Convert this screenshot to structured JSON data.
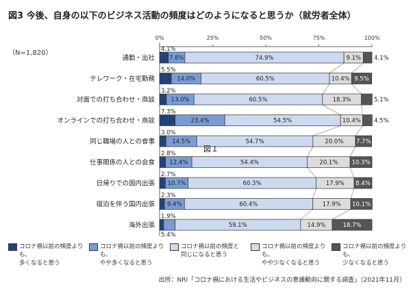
{
  "chart_data": {
    "type": "bar",
    "orientation": "horizontal-stacked-100",
    "title": "図3 今後、自身の以下のビジネス活動の頻度はどのようになると思うか（就労者全体）",
    "note": "（N=1,820）",
    "xticks": [
      "0%",
      "25%",
      "50%",
      "75%",
      "100%"
    ],
    "xlim": [
      0,
      100
    ],
    "categories": [
      "通勤・出社",
      "テレワーク・在宅勤務",
      "対面での打ち合わせ・商談",
      "オンラインでの打ち合わせ・商談",
      "同じ職場の人との食事",
      "仕事関係の人との会食",
      "日帰りでの国内出張",
      "宿泊を伴う国内出張",
      "海外出張"
    ],
    "series": [
      {
        "name": "コロナ禍以前の頻度よりも、多くなると思う",
        "color": "#24427a",
        "values": [
          4.1,
          5.5,
          3.2,
          7.3,
          3.0,
          2.8,
          2.7,
          2.3,
          1.9
        ]
      },
      {
        "name": "コロナ禍以前の頻度よりも、やや多くなると思う",
        "color": "#7a9cd6",
        "values": [
          7.8,
          14.0,
          13.0,
          23.4,
          14.5,
          12.4,
          10.7,
          9.4,
          5.4
        ]
      },
      {
        "name": "コロナ禍以前の頻度と同じになると思う",
        "color": "#cdd9ef",
        "values": [
          74.9,
          60.5,
          60.5,
          54.5,
          54.7,
          54.4,
          60.3,
          60.4,
          59.1
        ]
      },
      {
        "name": "コロナ禍以前の頻度よりも、やや少なくなると思う",
        "color": "#dcdcdc",
        "values": [
          9.1,
          10.4,
          18.3,
          10.4,
          20.0,
          20.1,
          17.9,
          17.9,
          14.9
        ]
      },
      {
        "name": "コロナ禍以前の頻度よりも、少なくなると思う",
        "color": "#555555",
        "values": [
          4.1,
          9.5,
          5.1,
          4.5,
          7.7,
          10.3,
          8.4,
          10.1,
          18.7
        ]
      }
    ],
    "legend_lines": [
      [
        "コロナ禍以前の頻度よりも、",
        "多くなると思う"
      ],
      [
        "コロナ禍以前の頻度よりも、",
        "やや多くなると思う"
      ],
      [
        "コロナ禍以前の頻度と",
        "同じになると思う"
      ],
      [
        "コロナ禍以前の頻度よりも、",
        "やや少なくなると思う"
      ],
      [
        "コロナ禍以前の頻度よりも、",
        "少なくなると思う"
      ]
    ],
    "legend_position": "bottom",
    "stray_label": "図１",
    "source": "出所：NRI「コロナ禍における生活やビジネスの意識動向に関する調査」（2021年11月）"
  }
}
